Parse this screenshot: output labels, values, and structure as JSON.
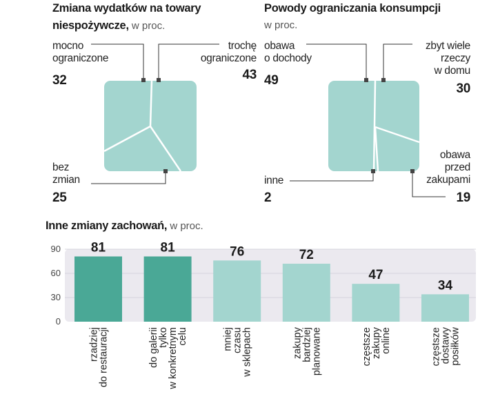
{
  "chart_data": [
    {
      "type": "pie",
      "title": "Zmiana wydatków na towary",
      "title_bold_tail": "niespożywcze,",
      "subtitle": "w proc.",
      "series": [
        {
          "label_lines": [
            "mocno",
            "ograniczone"
          ],
          "value": 32
        },
        {
          "label_lines": [
            "trochę",
            "ograniczone"
          ],
          "value": 43
        },
        {
          "label_lines": [
            "bez",
            "zmian"
          ],
          "value": 25
        }
      ]
    },
    {
      "type": "pie",
      "title": "Powody ograniczania konsumpcji",
      "subtitle": "w proc.",
      "series": [
        {
          "label_lines": [
            "obawa",
            "o dochody"
          ],
          "value": 49
        },
        {
          "label_lines": [
            "zbyt wiele",
            "rzeczy",
            "w domu"
          ],
          "value": 30
        },
        {
          "label_lines": [
            "inne"
          ],
          "value": 2
        },
        {
          "label_lines": [
            "obawa",
            "przed",
            "zakupami"
          ],
          "value": 19
        }
      ]
    },
    {
      "type": "bar",
      "title": "Inne zmiany zachowań,",
      "subtitle": "w proc.",
      "ylim": [
        0,
        90
      ],
      "yticks": [
        0,
        30,
        60,
        90
      ],
      "highlight_color": "#4aa896",
      "base_color": "#a3d5cf",
      "categories": [
        {
          "lines": [
            "rzadziej",
            "do restauracji"
          ],
          "value": 81,
          "highlight": true
        },
        {
          "lines": [
            "do galerii",
            "tylko",
            "w konkretnym",
            "celu"
          ],
          "value": 81,
          "highlight": true
        },
        {
          "lines": [
            "mniej",
            "czasu",
            "w sklepach"
          ],
          "value": 76,
          "highlight": false
        },
        {
          "lines": [
            "zakupy",
            "bardziej",
            "planowane"
          ],
          "value": 72,
          "highlight": false
        },
        {
          "lines": [
            "częstsze",
            "zakupy",
            "online"
          ],
          "value": 47,
          "highlight": false
        },
        {
          "lines": [
            "częstsze",
            "dostawy",
            "posiłków"
          ],
          "value": 34,
          "highlight": false
        }
      ]
    }
  ],
  "colors": {
    "pie_fill": "#a3d5cf",
    "bar_plot_bg": "#ebe9ef",
    "line": "#333333"
  }
}
